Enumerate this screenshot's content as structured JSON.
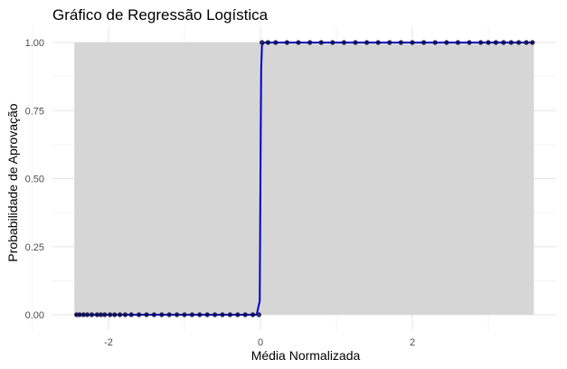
{
  "chart_data": {
    "type": "line",
    "title": "Gráfico de Regressão Logística",
    "xlabel": "Média Normalizada",
    "ylabel": "Probabilidade de Aprovação",
    "xlim": [
      -2.45,
      3.6
    ],
    "ylim": [
      0,
      1
    ],
    "x_ticks": [
      -2,
      0,
      2
    ],
    "x_tick_labels": [
      "-2",
      "0",
      "2"
    ],
    "y_ticks": [
      0,
      0.25,
      0.5,
      0.75,
      1
    ],
    "y_tick_labels": [
      "0.00",
      "0.25",
      "0.50",
      "0.75",
      "1.00"
    ],
    "grid": true,
    "confidence_band_color": "#d6d6d6",
    "curve_color": "#0000cc",
    "point_color": "#000033",
    "curve": {
      "name": "",
      "x": [
        -2.45,
        -0.05,
        -0.01,
        0.0,
        0.01,
        0.02,
        0.05,
        3.6
      ],
      "y": [
        0.0,
        0.0,
        0.05,
        0.5,
        0.9,
        0.99,
        1.0,
        1.0
      ]
    },
    "points": {
      "x": [
        -2.42,
        -2.38,
        -2.33,
        -2.28,
        -2.22,
        -2.15,
        -2.1,
        -2.05,
        -1.98,
        -1.92,
        -1.85,
        -1.78,
        -1.7,
        -1.6,
        -1.5,
        -1.4,
        -1.3,
        -1.2,
        -1.1,
        -1.0,
        -0.9,
        -0.8,
        -0.7,
        -0.6,
        -0.5,
        -0.4,
        -0.3,
        -0.2,
        -0.1,
        -0.02,
        0.02,
        0.1,
        0.2,
        0.35,
        0.5,
        0.65,
        0.8,
        0.95,
        1.1,
        1.25,
        1.4,
        1.55,
        1.7,
        1.85,
        2.0,
        2.15,
        2.3,
        2.45,
        2.6,
        2.75,
        2.9,
        3.0,
        3.1,
        3.2,
        3.3,
        3.4,
        3.5,
        3.58
      ],
      "y": [
        0,
        0,
        0,
        0,
        0,
        0,
        0,
        0,
        0,
        0,
        0,
        0,
        0,
        0,
        0,
        0,
        0,
        0,
        0,
        0,
        0,
        0,
        0,
        0,
        0,
        0,
        0,
        0,
        0,
        0,
        1,
        1,
        1,
        1,
        1,
        1,
        1,
        1,
        1,
        1,
        1,
        1,
        1,
        1,
        1,
        1,
        1,
        1,
        1,
        1,
        1,
        1,
        1,
        1,
        1,
        1,
        1,
        1
      ]
    }
  }
}
